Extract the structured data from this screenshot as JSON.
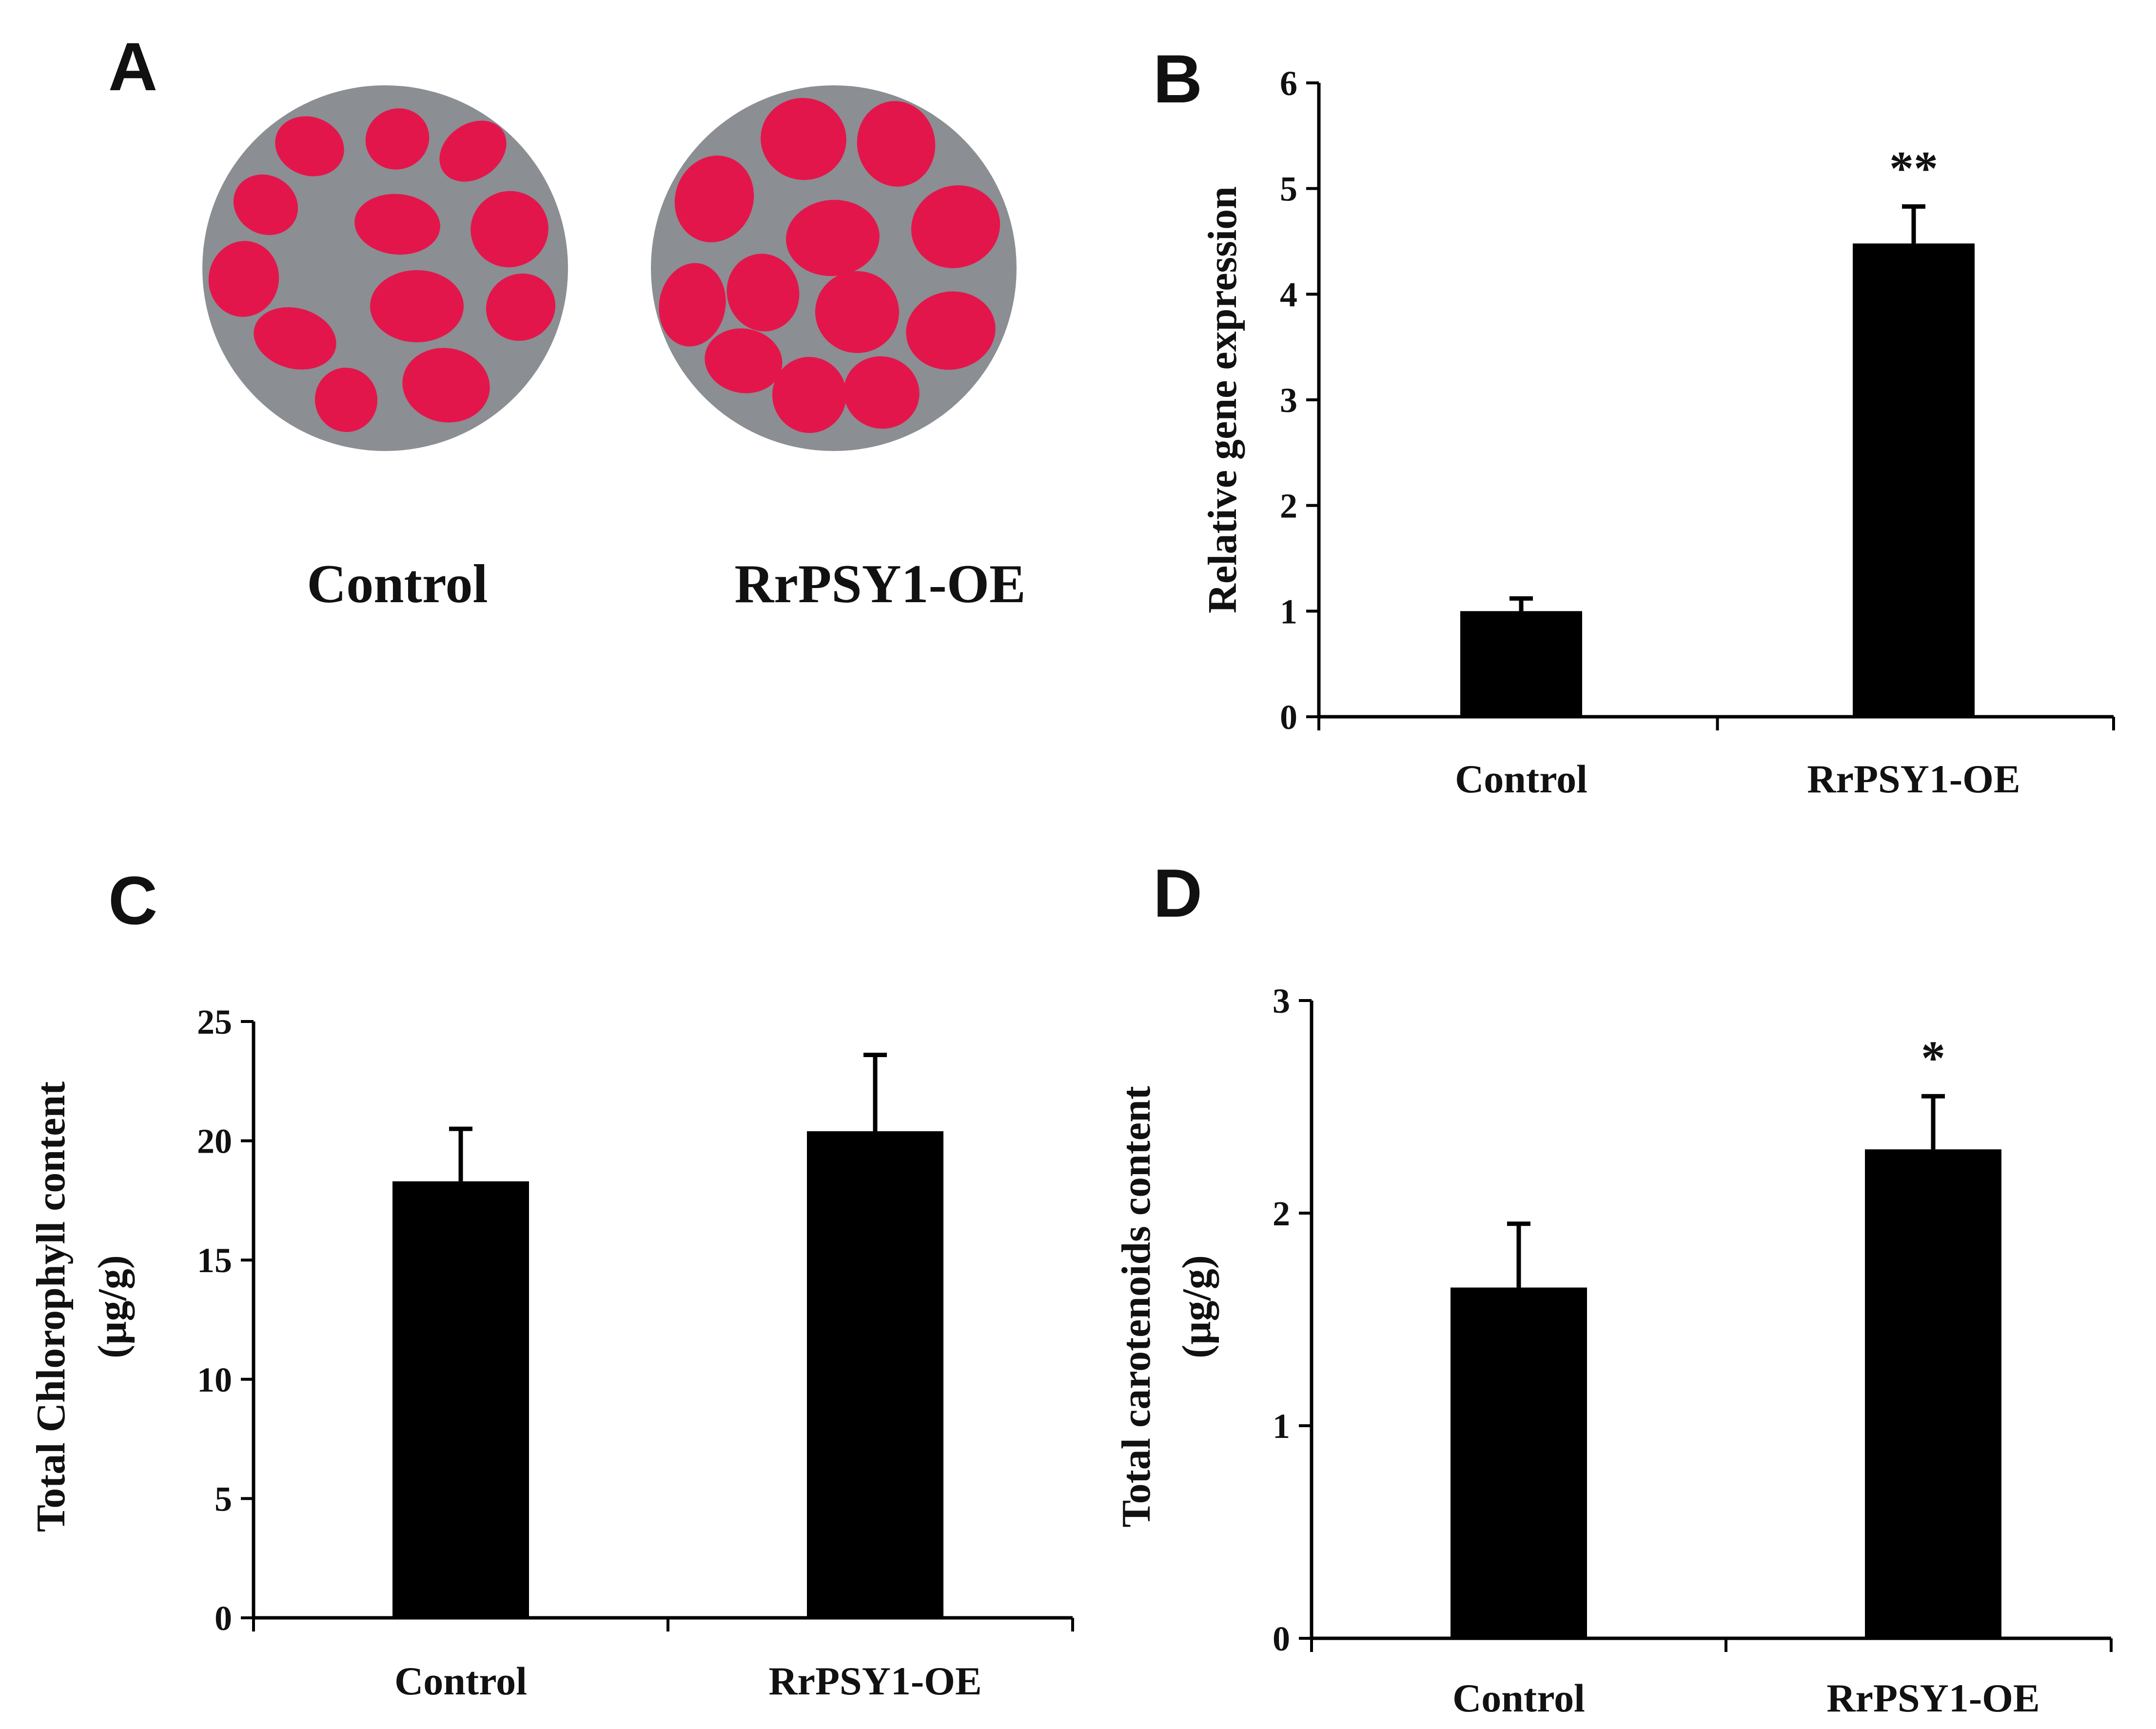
{
  "panels": {
    "a": {
      "letter": "A",
      "labels": [
        "Control",
        "RrPSY1-OE"
      ],
      "dish_color": "#8b8e92",
      "petal_color": "#e3164b"
    }
  },
  "chart_data": [
    {
      "id": "b",
      "panel_letter": "B",
      "type": "bar",
      "categories": [
        "Control",
        "RrPSY1-OE"
      ],
      "values": [
        1.0,
        4.48
      ],
      "errors": [
        0.12,
        0.35
      ],
      "significance": [
        "",
        "**"
      ],
      "title": "",
      "xlabel": "",
      "ylabel_lines": [
        "Relative gene expression"
      ],
      "ylim": [
        0,
        6
      ],
      "yticks": [
        0,
        1,
        2,
        3,
        4,
        5,
        6
      ],
      "grid": false,
      "bar_color": "#000000"
    },
    {
      "id": "c",
      "panel_letter": "C",
      "type": "bar",
      "categories": [
        "Control",
        "RrPSY1-OE"
      ],
      "values": [
        18.3,
        20.4
      ],
      "errors": [
        2.2,
        3.2
      ],
      "significance": [
        "",
        ""
      ],
      "title": "",
      "xlabel": "",
      "ylabel_lines": [
        "Total Chlorophyll content",
        "(µg/g)"
      ],
      "ylim": [
        0,
        25
      ],
      "yticks": [
        0,
        5,
        10,
        15,
        20,
        25
      ],
      "grid": false,
      "bar_color": "#000000"
    },
    {
      "id": "d",
      "panel_letter": "D",
      "type": "bar",
      "categories": [
        "Control",
        "RrPSY1-OE"
      ],
      "values": [
        1.65,
        2.3
      ],
      "errors": [
        0.3,
        0.25
      ],
      "significance": [
        "",
        "*"
      ],
      "title": "",
      "xlabel": "",
      "ylabel_lines": [
        "Total carotenoids content",
        "(µg/g)"
      ],
      "ylim": [
        0,
        3
      ],
      "yticks": [
        0,
        1,
        2,
        3
      ],
      "grid": false,
      "bar_color": "#000000"
    }
  ]
}
